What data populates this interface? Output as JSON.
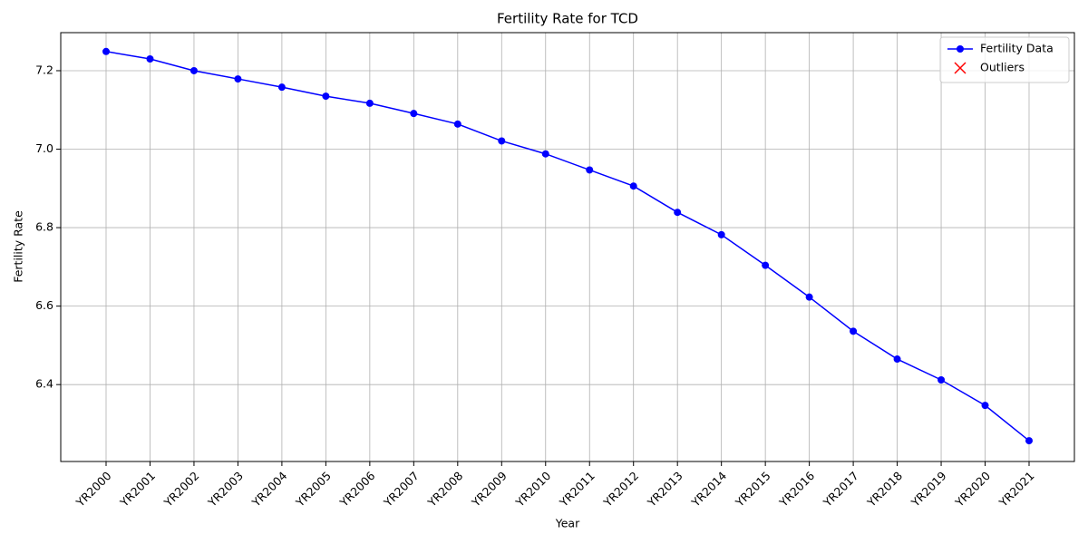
{
  "chart_data": {
    "type": "line",
    "title": "Fertility Rate for TCD",
    "xlabel": "Year",
    "ylabel": "Fertility Rate",
    "categories": [
      "YR2000",
      "YR2001",
      "YR2002",
      "YR2003",
      "YR2004",
      "YR2005",
      "YR2006",
      "YR2007",
      "YR2008",
      "YR2009",
      "YR2010",
      "YR2011",
      "YR2012",
      "YR2013",
      "YR2014",
      "YR2015",
      "YR2016",
      "YR2017",
      "YR2018",
      "YR2019",
      "YR2020",
      "YR2021"
    ],
    "series": [
      {
        "name": "Fertility Data",
        "color": "#0000ff",
        "marker": "o",
        "values": [
          7.249,
          7.23,
          7.2,
          7.179,
          7.158,
          7.135,
          7.117,
          7.091,
          7.064,
          7.021,
          6.988,
          6.947,
          6.906,
          6.839,
          6.782,
          6.704,
          6.623,
          6.536,
          6.465,
          6.412,
          6.347,
          6.257
        ]
      },
      {
        "name": "Outliers",
        "color": "#ff0000",
        "marker": "x",
        "values": [
          null,
          null,
          null,
          null,
          null,
          null,
          null,
          null,
          null,
          null,
          null,
          null,
          null,
          null,
          null,
          null,
          null,
          null,
          null,
          null,
          null,
          null
        ]
      }
    ],
    "ylim": [
      6.204,
      7.297
    ],
    "yticks": [
      6.4,
      6.6,
      6.8,
      {
        "value": 7,
        "label": "7.0"
      },
      7.2
    ],
    "grid": true,
    "legend": "upper right"
  }
}
